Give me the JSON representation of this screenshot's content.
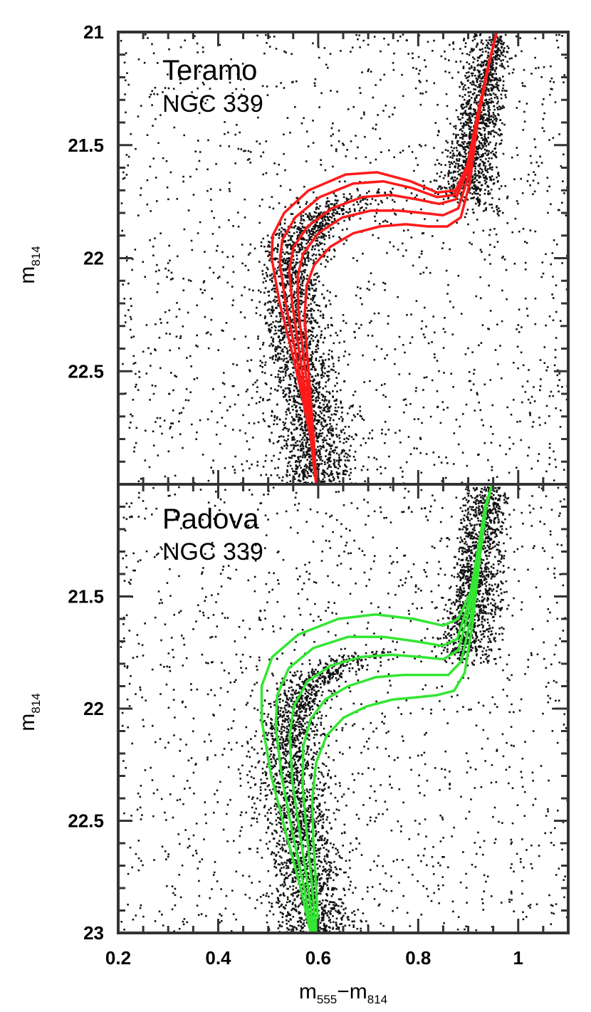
{
  "chart_data": [
    {
      "type": "scatter",
      "annotation": [
        "Teramo",
        "NGC 339"
      ],
      "xlabel": "",
      "ylabel": "m",
      "ylabel_sub": "814",
      "xlim": [
        0.2,
        1.1
      ],
      "ylim": [
        23,
        21
      ],
      "yticks": [
        "21",
        "21.5",
        "22",
        "22.5"
      ],
      "isochrone_color": "#ff1a1a",
      "isochrones": [
        {
          "x": [
            0.596,
            0.585,
            0.567,
            0.546,
            0.523,
            0.507,
            0.509,
            0.532,
            0.581,
            0.655,
            0.718,
            0.785,
            0.838,
            0.875,
            0.9,
            0.92,
            0.941,
            0.957
          ],
          "y": [
            23.0,
            22.8,
            22.6,
            22.4,
            22.2,
            22.0,
            21.9,
            21.8,
            21.7,
            21.63,
            21.62,
            21.66,
            21.71,
            21.7,
            21.58,
            21.38,
            21.15,
            21.0
          ]
        },
        {
          "x": [
            0.596,
            0.587,
            0.571,
            0.553,
            0.535,
            0.523,
            0.528,
            0.554,
            0.603,
            0.67,
            0.73,
            0.788,
            0.838,
            0.873,
            0.897,
            0.918,
            0.94,
            0.957
          ],
          "y": [
            23.0,
            22.8,
            22.6,
            22.4,
            22.2,
            22.02,
            21.92,
            21.82,
            21.73,
            21.67,
            21.66,
            21.69,
            21.73,
            21.72,
            21.6,
            21.38,
            21.15,
            21.0
          ]
        },
        {
          "x": [
            0.596,
            0.588,
            0.575,
            0.561,
            0.548,
            0.542,
            0.551,
            0.579,
            0.627,
            0.688,
            0.745,
            0.797,
            0.842,
            0.875,
            0.897,
            0.916,
            0.94,
            0.957
          ],
          "y": [
            23.0,
            22.8,
            22.6,
            22.4,
            22.2,
            22.05,
            21.95,
            21.86,
            21.78,
            21.73,
            21.72,
            21.74,
            21.76,
            21.74,
            21.62,
            21.39,
            21.15,
            21.0
          ]
        },
        {
          "x": [
            0.596,
            0.59,
            0.58,
            0.569,
            0.56,
            0.559,
            0.57,
            0.6,
            0.648,
            0.705,
            0.76,
            0.808,
            0.85,
            0.88,
            0.9,
            0.917,
            0.94,
            0.957
          ],
          "y": [
            23.0,
            22.8,
            22.6,
            22.4,
            22.22,
            22.08,
            21.98,
            21.89,
            21.82,
            21.79,
            21.79,
            21.8,
            21.81,
            21.78,
            21.64,
            21.4,
            21.15,
            21.0
          ]
        },
        {
          "x": [
            0.596,
            0.591,
            0.584,
            0.577,
            0.573,
            0.577,
            0.592,
            0.624,
            0.67,
            0.723,
            0.775,
            0.82,
            0.858,
            0.885,
            0.903,
            0.918,
            0.94,
            0.957
          ],
          "y": [
            23.0,
            22.8,
            22.6,
            22.4,
            22.25,
            22.12,
            22.03,
            21.95,
            21.89,
            21.86,
            21.85,
            21.86,
            21.86,
            21.82,
            21.67,
            21.41,
            21.15,
            21.0
          ]
        }
      ]
    },
    {
      "type": "scatter",
      "annotation": [
        "Padova",
        "NGC 339"
      ],
      "xlabel": "m",
      "xlabel_sub_a": "555",
      "xlabel_sub_b": "814",
      "ylabel": "m",
      "ylabel_sub": "814",
      "xlim": [
        0.2,
        1.1
      ],
      "ylim": [
        23,
        21
      ],
      "xticks": [
        "0.2",
        "0.4",
        "0.6",
        "0.8",
        "1"
      ],
      "yticks": [
        "21.5",
        "22",
        "22.5",
        "23"
      ],
      "isochrone_color": "#33e633",
      "isochrones": [
        {
          "x": [
            0.585,
            0.565,
            0.535,
            0.506,
            0.487,
            0.487,
            0.508,
            0.56,
            0.64,
            0.715,
            0.79,
            0.85,
            0.88,
            0.905,
            0.92,
            0.935,
            0.948
          ],
          "y": [
            23.0,
            22.8,
            22.55,
            22.3,
            22.05,
            21.9,
            21.77,
            21.67,
            21.6,
            21.58,
            21.6,
            21.63,
            21.6,
            21.48,
            21.3,
            21.1,
            21.0
          ]
        },
        {
          "x": [
            0.588,
            0.572,
            0.548,
            0.527,
            0.515,
            0.518,
            0.541,
            0.59,
            0.66,
            0.73,
            0.795,
            0.848,
            0.878,
            0.902,
            0.918,
            0.934,
            0.948
          ],
          "y": [
            23.0,
            22.8,
            22.55,
            22.3,
            22.08,
            21.94,
            21.82,
            21.73,
            21.68,
            21.68,
            21.7,
            21.72,
            21.69,
            21.52,
            21.31,
            21.1,
            21.0
          ]
        },
        {
          "x": [
            0.592,
            0.58,
            0.563,
            0.548,
            0.543,
            0.551,
            0.578,
            0.624,
            0.685,
            0.748,
            0.805,
            0.85,
            0.88,
            0.902,
            0.918,
            0.934,
            0.948
          ],
          "y": [
            23.0,
            22.8,
            22.55,
            22.32,
            22.12,
            21.99,
            21.88,
            21.81,
            21.77,
            21.76,
            21.77,
            21.78,
            21.74,
            21.56,
            21.32,
            21.1,
            21.0
          ]
        },
        {
          "x": [
            0.596,
            0.588,
            0.577,
            0.569,
            0.57,
            0.584,
            0.614,
            0.66,
            0.715,
            0.77,
            0.82,
            0.86,
            0.886,
            0.905,
            0.92,
            0.935,
            0.948
          ],
          "y": [
            23.0,
            22.8,
            22.55,
            22.35,
            22.17,
            22.05,
            21.96,
            21.9,
            21.86,
            21.85,
            21.85,
            21.85,
            21.79,
            21.6,
            21.34,
            21.1,
            21.0
          ]
        },
        {
          "x": [
            0.6,
            0.596,
            0.59,
            0.588,
            0.596,
            0.617,
            0.651,
            0.697,
            0.748,
            0.795,
            0.838,
            0.872,
            0.893,
            0.908,
            0.922,
            0.936,
            0.948
          ],
          "y": [
            23.0,
            22.8,
            22.58,
            22.4,
            22.24,
            22.12,
            22.04,
            21.99,
            21.96,
            21.95,
            21.94,
            21.92,
            21.84,
            21.63,
            21.35,
            21.1,
            21.0
          ]
        }
      ]
    }
  ]
}
